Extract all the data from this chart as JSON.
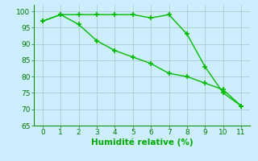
{
  "line1_x": [
    0,
    1,
    2,
    3,
    4,
    5,
    6,
    7,
    8,
    9,
    10,
    11
  ],
  "line1_y": [
    97,
    99,
    99,
    99,
    99,
    99,
    98,
    99,
    93,
    83,
    75,
    71
  ],
  "line2_x": [
    0,
    1,
    2,
    3,
    4,
    5,
    6,
    7,
    8,
    9,
    10,
    11
  ],
  "line2_y": [
    97,
    99,
    96,
    91,
    88,
    86,
    84,
    81,
    80,
    78,
    76,
    71
  ],
  "line_color": "#00bb00",
  "marker": "+",
  "markersize": 4,
  "markeredgewidth": 1.2,
  "linewidth": 1.0,
  "linestyle": "-",
  "xlabel": "Humidité relative (%)",
  "xlabel_color": "#00aa00",
  "bg_color": "#cceeff",
  "grid_color": "#aacccc",
  "xlim": [
    -0.5,
    11.5
  ],
  "ylim": [
    65,
    102
  ],
  "xticks": [
    0,
    1,
    2,
    3,
    4,
    5,
    6,
    7,
    8,
    9,
    10,
    11
  ],
  "yticks": [
    65,
    70,
    75,
    80,
    85,
    90,
    95,
    100
  ],
  "tick_color": "#007700",
  "tick_fontsize": 6.5,
  "xlabel_fontsize": 7.5,
  "spine_color": "#008800"
}
